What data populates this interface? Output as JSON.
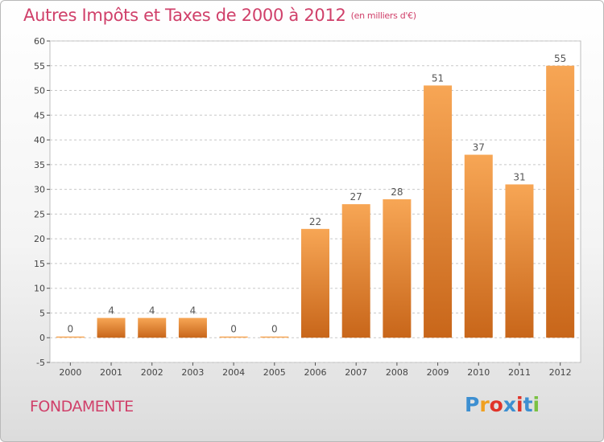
{
  "header": {
    "title": "Autres Impôts et Taxes de 2000 à 2012",
    "unit": "(en milliers d'€)"
  },
  "footer": {
    "commune": "FONDAMENTE",
    "logo": {
      "letters": [
        "P",
        "r",
        "o",
        "x",
        "i",
        "t",
        "i"
      ],
      "colors": [
        "#3d8fd1",
        "#f0a020",
        "#e0342a",
        "#3d8fd1",
        "#e0342a",
        "#3d8fd1",
        "#7ac142"
      ]
    }
  },
  "colors": {
    "bar_light": "#f7a655",
    "bar_dark": "#c8661a",
    "title": "#d0406a",
    "grid": "#c8c8c8"
  },
  "chart_data": {
    "type": "bar",
    "categories": [
      "2000",
      "2001",
      "2002",
      "2003",
      "2004",
      "2005",
      "2006",
      "2007",
      "2008",
      "2009",
      "2010",
      "2011",
      "2012"
    ],
    "values": [
      0,
      4,
      4,
      4,
      0,
      0,
      22,
      27,
      28,
      51,
      37,
      31,
      55
    ],
    "yticks": [
      "-5",
      "0",
      "5",
      "10",
      "15",
      "20",
      "25",
      "30",
      "35",
      "40",
      "45",
      "50",
      "55",
      "60"
    ],
    "ylim": [
      -5,
      60
    ],
    "grid": true,
    "legend": "none"
  }
}
